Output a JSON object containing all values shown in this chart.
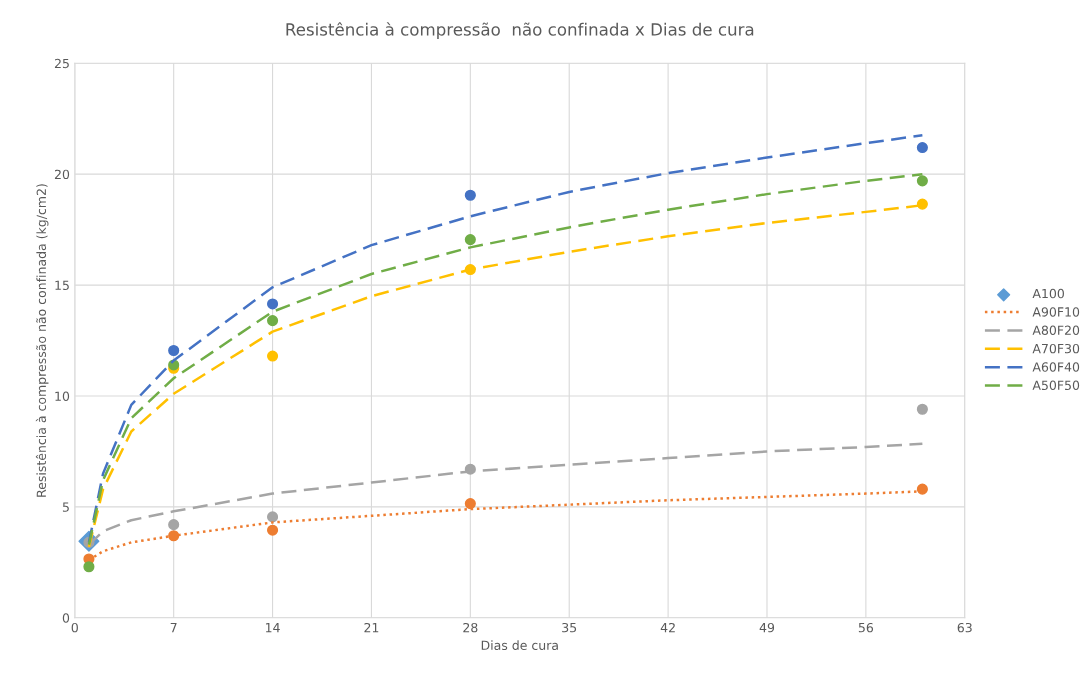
{
  "chart_data": {
    "type": "scatter",
    "title": "Resistência à compressão  não confinada x Dias de cura",
    "xlabel": "Dias de cura",
    "ylabel": "Resistência à compressão não confinada (kg/cm2)",
    "x": [
      1,
      7,
      14,
      28,
      60
    ],
    "xlim": [
      0,
      63
    ],
    "xticks": [
      0,
      7,
      14,
      21,
      28,
      35,
      42,
      49,
      56,
      63
    ],
    "ylim": [
      0,
      25
    ],
    "yticks": [
      0,
      5,
      10,
      15,
      20,
      25
    ],
    "grid": true,
    "legend": "right",
    "series": [
      {
        "name": "A100",
        "marker": "diamond",
        "color": "#5b9bd5",
        "x": [
          1
        ],
        "values": [
          3.45
        ]
      },
      {
        "marker": "circle",
        "color": "#ed7d31",
        "values": [
          2.65,
          3.7,
          3.95,
          5.15,
          5.8
        ]
      },
      {
        "marker": "circle",
        "color": "#a5a5a5",
        "values": [
          3.4,
          4.2,
          4.55,
          6.7,
          9.4
        ]
      },
      {
        "marker": "circle",
        "color": "#ffc000",
        "values": [
          null,
          11.25,
          11.8,
          15.7,
          18.65
        ]
      },
      {
        "marker": "circle",
        "color": "#4472c4",
        "values": [
          null,
          12.05,
          14.15,
          19.05,
          21.2
        ]
      },
      {
        "marker": "circle",
        "color": "#70ad47",
        "values": [
          2.3,
          11.4,
          13.4,
          17.05,
          19.7
        ]
      },
      {
        "name": "A90F10",
        "type": "line",
        "line_style": "dotted",
        "color": "#ed7d31",
        "x": [
          1,
          2,
          4,
          7,
          14,
          21,
          28,
          35,
          42,
          49,
          56,
          60
        ],
        "values": [
          2.6,
          3.0,
          3.4,
          3.7,
          4.3,
          4.6,
          4.9,
          5.1,
          5.3,
          5.45,
          5.6,
          5.7
        ]
      },
      {
        "name": "A80F20",
        "type": "line",
        "line_style": "dashed",
        "color": "#a5a5a5",
        "x": [
          1,
          2,
          4,
          7,
          14,
          21,
          28,
          35,
          42,
          49,
          56,
          60
        ],
        "values": [
          3.3,
          3.9,
          4.4,
          4.8,
          5.6,
          6.1,
          6.6,
          6.9,
          7.2,
          7.5,
          7.7,
          7.85
        ]
      },
      {
        "name": "A70F30",
        "type": "line",
        "line_style": "dashed",
        "color": "#ffc000",
        "x": [
          1,
          2,
          4,
          7,
          14,
          21,
          28,
          35,
          42,
          49,
          56,
          60
        ],
        "values": [
          3.2,
          5.8,
          8.4,
          10.1,
          12.9,
          14.5,
          15.7,
          16.5,
          17.2,
          17.8,
          18.3,
          18.6
        ]
      },
      {
        "name": "A60F40",
        "type": "line",
        "line_style": "dashed",
        "color": "#4472c4",
        "x": [
          1,
          2,
          4,
          7,
          14,
          21,
          28,
          35,
          42,
          49,
          56,
          60
        ],
        "values": [
          3.4,
          6.5,
          9.6,
          11.6,
          14.9,
          16.8,
          18.1,
          19.2,
          20.05,
          20.75,
          21.4,
          21.75
        ]
      },
      {
        "name": "A50F50",
        "type": "line",
        "line_style": "dashed",
        "color": "#70ad47",
        "x": [
          1,
          2,
          4,
          7,
          14,
          21,
          28,
          35,
          42,
          49,
          56,
          60
        ],
        "values": [
          3.3,
          6.2,
          9.0,
          10.8,
          13.8,
          15.5,
          16.7,
          17.6,
          18.4,
          19.1,
          19.7,
          20.0
        ]
      }
    ]
  }
}
